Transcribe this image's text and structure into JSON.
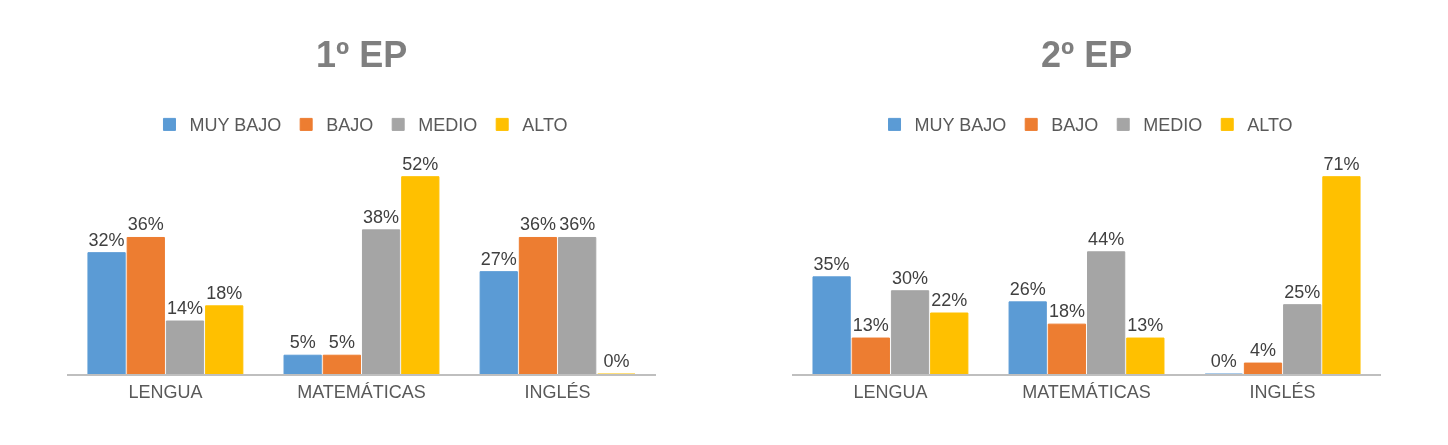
{
  "chart_data": [
    {
      "type": "bar",
      "title": "1º EP",
      "categories": [
        "LENGUA",
        "MATEMÁTICAS",
        "INGLÉS"
      ],
      "legend": "top",
      "series": [
        {
          "name": "MUY BAJO",
          "color": "#5b9bd5",
          "values": [
            32,
            5,
            27
          ],
          "value_labels": [
            "32%",
            "5%",
            "27%"
          ]
        },
        {
          "name": "BAJO",
          "color": "#ed7d31",
          "values": [
            36,
            5,
            36
          ],
          "value_labels": [
            "36%",
            "5%",
            "36%"
          ]
        },
        {
          "name": "MEDIO",
          "color": "#a5a5a5",
          "values": [
            14,
            38,
            36
          ],
          "value_labels": [
            "14%",
            "38%",
            "36%"
          ]
        },
        {
          "name": "ALTO",
          "color": "#ffc000",
          "values": [
            18,
            52,
            0
          ],
          "value_labels": [
            "18%",
            "52%",
            "0%"
          ]
        }
      ]
    },
    {
      "type": "bar",
      "title": "2º EP",
      "categories": [
        "LENGUA",
        "MATEMÁTICAS",
        "INGLÉS"
      ],
      "legend": "top",
      "series": [
        {
          "name": "MUY BAJO",
          "color": "#5b9bd5",
          "values": [
            35,
            26,
            0
          ],
          "value_labels": [
            "35%",
            "26%",
            "0%"
          ]
        },
        {
          "name": "BAJO",
          "color": "#ed7d31",
          "values": [
            13,
            18,
            4
          ],
          "value_labels": [
            "13%",
            "18%",
            "4%"
          ]
        },
        {
          "name": "MEDIO",
          "color": "#a5a5a5",
          "values": [
            30,
            44,
            25
          ],
          "value_labels": [
            "30%",
            "44%",
            "25%"
          ]
        },
        {
          "name": "ALTO",
          "color": "#ffc000",
          "values": [
            22,
            13,
            71
          ],
          "value_labels": [
            "22%",
            "13%",
            "71%"
          ]
        }
      ]
    }
  ]
}
